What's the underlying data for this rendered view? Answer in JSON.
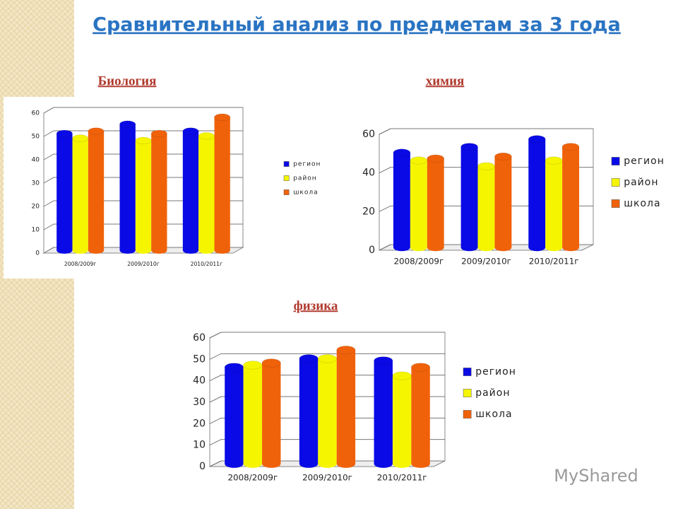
{
  "title": "Сравнительный анализ по предметам за 3 года",
  "watermark": "MyShared",
  "chart_data": [
    {
      "type": "bar",
      "title": "Биология",
      "categories": [
        "2008/2009г",
        "2009/2010г",
        "2010/2011г"
      ],
      "series": [
        {
          "name": "регион",
          "color": "#0a0ae6",
          "values": [
            50,
            54,
            51
          ]
        },
        {
          "name": "район",
          "color": "#f5f500",
          "values": [
            48,
            47,
            49
          ]
        },
        {
          "name": "школа",
          "color": "#f0620a",
          "values": [
            51,
            50,
            57
          ]
        }
      ],
      "ylim": [
        0,
        60
      ],
      "yticks": [
        0,
        10,
        20,
        30,
        40,
        50,
        60
      ],
      "grid": true,
      "legend": "right"
    },
    {
      "type": "bar",
      "title": "химия",
      "categories": [
        "2008/2009г",
        "2009/2010г",
        "2010/2011г"
      ],
      "series": [
        {
          "name": "регион",
          "color": "#0a0ae6",
          "values": [
            49,
            52,
            56
          ]
        },
        {
          "name": "район",
          "color": "#f5f500",
          "values": [
            45,
            42,
            45
          ]
        },
        {
          "name": "школа",
          "color": "#f0620a",
          "values": [
            46,
            47,
            52
          ]
        }
      ],
      "ylim": [
        0,
        60
      ],
      "yticks": [
        0,
        20,
        40,
        60
      ],
      "grid": true,
      "legend": "right"
    },
    {
      "type": "bar",
      "title": "физика",
      "categories": [
        "2008/2009г",
        "2009/2010г",
        "2010/2011г"
      ],
      "series": [
        {
          "name": "регион",
          "color": "#0a0ae6",
          "values": [
            45,
            49,
            48
          ]
        },
        {
          "name": "район",
          "color": "#f5f500",
          "values": [
            46,
            49,
            41
          ]
        },
        {
          "name": "школа",
          "color": "#f0620a",
          "values": [
            47,
            53,
            45
          ]
        }
      ],
      "ylim": [
        0,
        60
      ],
      "yticks": [
        0,
        10,
        20,
        30,
        40,
        50,
        60
      ],
      "grid": true,
      "legend": "right"
    }
  ]
}
